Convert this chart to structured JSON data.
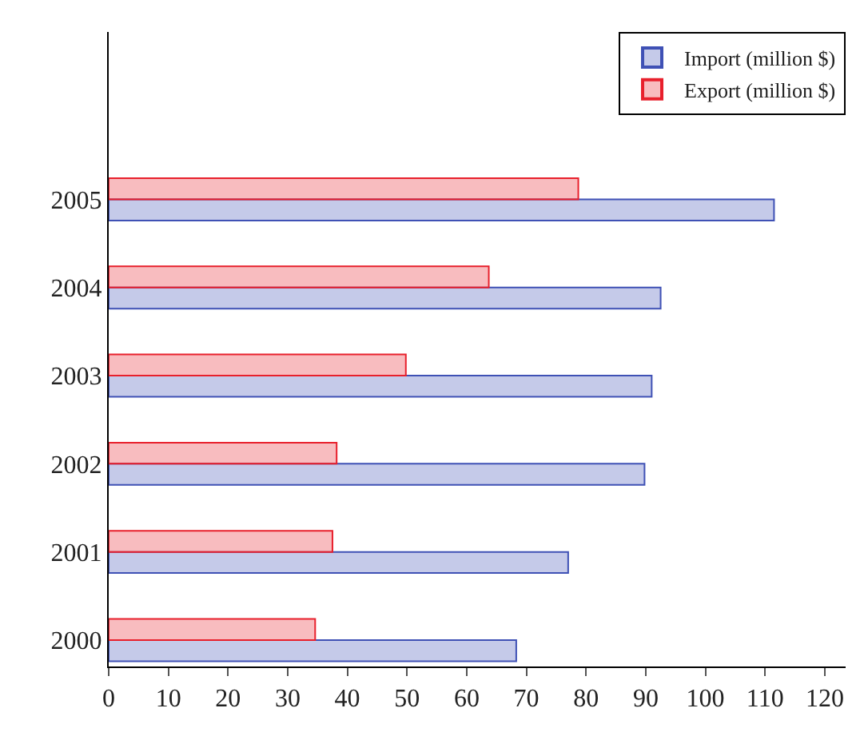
{
  "chart_data": {
    "type": "bar",
    "orientation": "horizontal",
    "categories": [
      "2005",
      "2004",
      "2003",
      "2002",
      "2001",
      "2000"
    ],
    "series": [
      {
        "name": "Import (million $)",
        "color": "#3f51b5",
        "values": [
          111.5,
          92.5,
          91,
          89.8,
          77,
          68.3
        ]
      },
      {
        "name": "Export (million $)",
        "color": "#e8202c",
        "values": [
          78.7,
          63.7,
          49.8,
          38.2,
          37.5,
          34.6
        ]
      }
    ],
    "xlim": [
      0,
      123.5
    ],
    "xticks": [
      0,
      10,
      20,
      30,
      40,
      50,
      60,
      70,
      80,
      90,
      100,
      110,
      120
    ],
    "legend": "top right"
  }
}
